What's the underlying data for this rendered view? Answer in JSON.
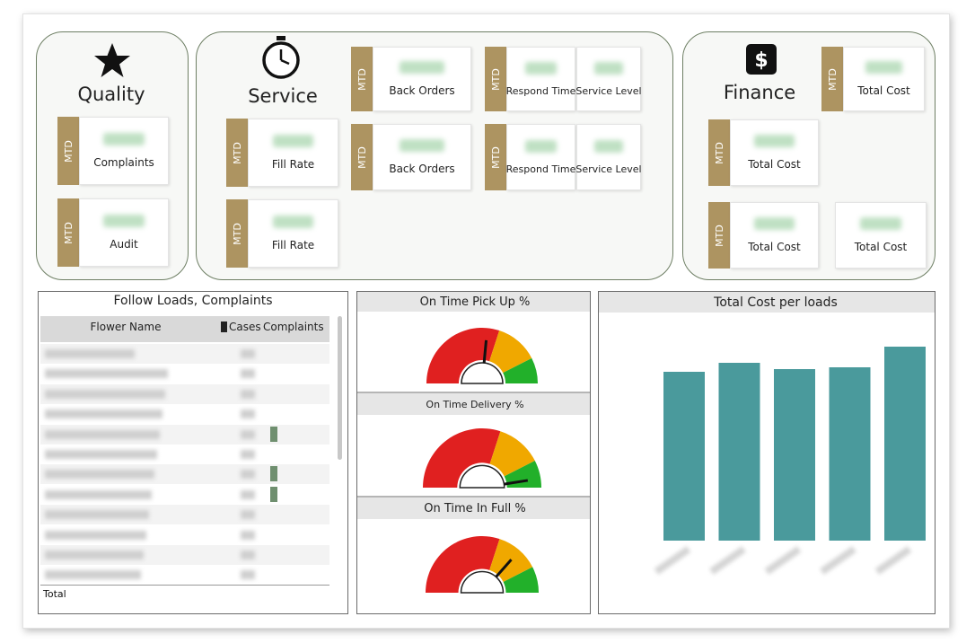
{
  "sections": [
    {
      "title": "Quality",
      "kpis": [
        {
          "tag": "MTD",
          "labels": [
            "Complaints"
          ]
        },
        {
          "tag": "MTD",
          "labels": [
            "Audit"
          ]
        }
      ]
    },
    {
      "title": "Service",
      "kpis": [
        {
          "tag": "MTD",
          "labels": [
            "Back Orders"
          ]
        },
        {
          "tag": "MTD",
          "labels": [
            "Respond Time",
            "Service Level"
          ]
        },
        {
          "tag": "MTD",
          "labels": [
            "Fill Rate"
          ]
        },
        {
          "tag": "MTD",
          "labels": [
            "Back Orders"
          ]
        },
        {
          "tag": "MTD",
          "labels": [
            "Respond Time",
            "Service Level"
          ]
        },
        {
          "tag": "MTD",
          "labels": [
            "Fill Rate"
          ]
        }
      ]
    },
    {
      "title": "Finance",
      "kpis": [
        {
          "tag": "MTD",
          "labels": [
            "Total Cost"
          ]
        },
        {
          "tag": "MTD",
          "labels": [
            "Total Cost"
          ]
        },
        {
          "tag": "MTD",
          "labels": [
            "Total Cost"
          ]
        },
        {
          "labels": [
            "Total Cost"
          ]
        }
      ]
    }
  ],
  "table": {
    "title": "Follow Loads, Complaints",
    "columns": [
      "Flower Name",
      "Cases",
      "Complaints"
    ],
    "total": "Total"
  },
  "gauges": [
    {
      "title": "On Time Pick Up %",
      "value": 53
    },
    {
      "title": "On Time Delivery %",
      "value": 95
    },
    {
      "title": "On Time In Full %",
      "value": 73
    }
  ],
  "cost_chart": {
    "type": "bar",
    "title": "Total Cost per loads",
    "values": [
      188,
      198,
      191,
      193,
      216
    ],
    "color": "#4a9a9c",
    "ylim": [
      0,
      240
    ]
  }
}
